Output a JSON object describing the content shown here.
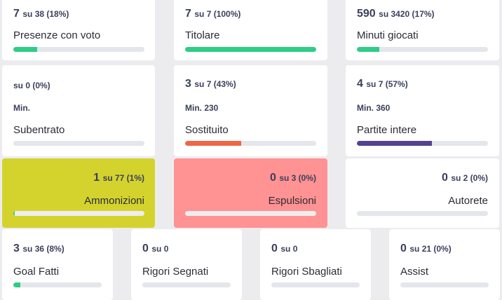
{
  "colors": {
    "green": "#2ecc87",
    "red": "#ef6646",
    "purple": "#54418f",
    "track": "#e3e6ea",
    "yellow_card": "#d4d32e",
    "red_card": "#ff9292",
    "track_on_color": "#eeeeee"
  },
  "row1": [
    {
      "num": "7",
      "rest": "su 38 (18%)",
      "label": "Presenze con voto",
      "progress": 0.18
    },
    {
      "num": "7",
      "rest": "su 7 (100%)",
      "label": "Titolare",
      "progress": 1.0
    },
    {
      "num": "590",
      "rest": "su 3420 (17%)",
      "label": "Minuti giocati",
      "progress": 0.17
    }
  ],
  "row2": [
    {
      "num": "",
      "rest": "su 0 (0%)",
      "min": "Min.",
      "label": "Subentrato",
      "progress": 0
    },
    {
      "num": "3",
      "rest": "su 7 (43%)",
      "min": "Min. 230",
      "label": "Sostituito",
      "progress": 0.43
    },
    {
      "num": "4",
      "rest": "su 7 (57%)",
      "min": "Min. 360",
      "label": "Partite intere",
      "progress": 0.57
    }
  ],
  "row3": [
    {
      "num": "1",
      "rest": "su 77 (1%)",
      "label": "Ammonizioni",
      "progress": 0.01
    },
    {
      "num": "0",
      "rest": "su 3 (0%)",
      "label": "Espulsioni",
      "progress": 0
    },
    {
      "num": "0",
      "rest": "su 2 (0%)",
      "label": "Autorete",
      "progress": 0
    }
  ],
  "row4": [
    {
      "num": "3",
      "rest": "su 36 (8%)",
      "label": "Goal Fatti",
      "progress": 0.08
    },
    {
      "num": "0",
      "rest": "su 0",
      "label": "Rigori Segnati",
      "progress": 0
    },
    {
      "num": "0",
      "rest": "su 0",
      "label": "Rigori Sbagliati",
      "progress": 0
    },
    {
      "num": "0",
      "rest": "su 21 (0%)",
      "label": "Assist",
      "progress": 0
    }
  ]
}
